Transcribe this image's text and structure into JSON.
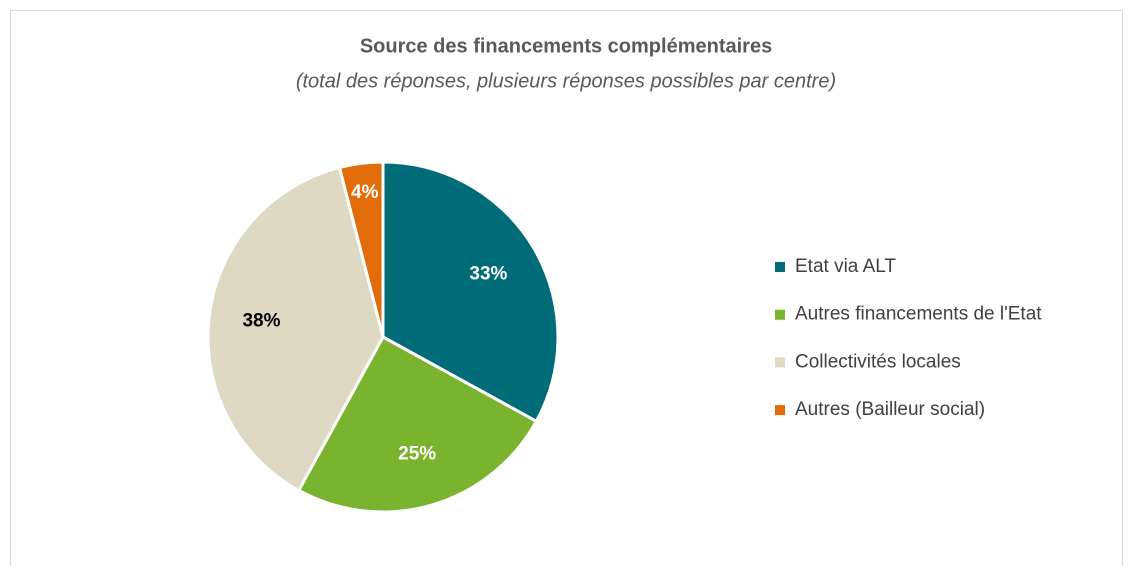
{
  "chart_data": {
    "type": "pie",
    "title": "Source des financements complémentaires",
    "subtitle": "(total des réponses, plusieurs réponses possibles par centre)",
    "categories": [
      "Etat via ALT",
      "Autres financements de l'Etat",
      "Collectivités locales",
      "Autres (Bailleur social)"
    ],
    "values": [
      33,
      25,
      38,
      4
    ],
    "value_labels": [
      "33%",
      "25%",
      "38%",
      "4%"
    ],
    "colors": [
      "#006c77",
      "#7ab32e",
      "#ddd9c3",
      "#e36c0a"
    ],
    "legend": "right"
  }
}
